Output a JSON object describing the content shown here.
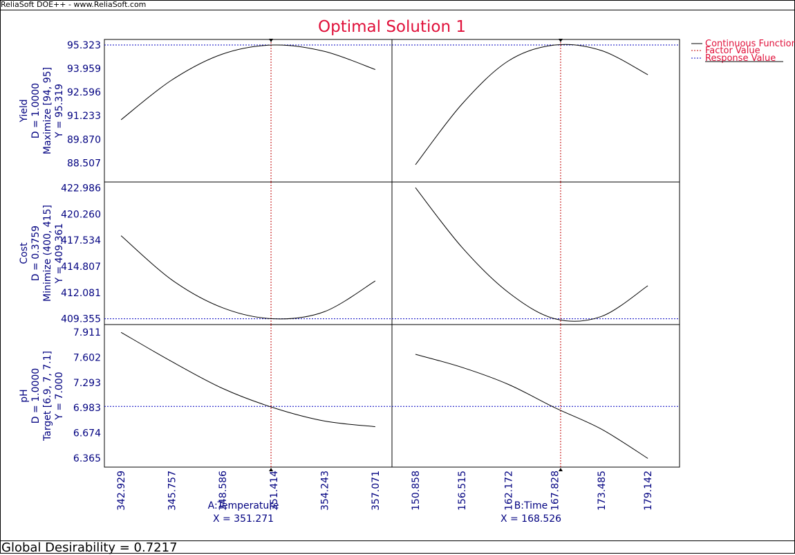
{
  "window": {
    "title": "ReliaSoft DOE++ - www.ReliaSoft.com"
  },
  "status": {
    "global_desirability": "Global Desirability = 0.7217"
  },
  "colors": {
    "title": "#e0103a",
    "axis_text": "#000080",
    "curve": "#000000",
    "factor_line": "#c00000",
    "response_line": "#0000c0",
    "legend_text": "#e0103a"
  },
  "chart_data": {
    "type": "line",
    "title": "Optimal Solution 1",
    "legend": {
      "placement": "top-right",
      "entries": [
        "Continuous Function",
        "Factor Value",
        "Response Value"
      ]
    },
    "factors": [
      {
        "name": "A:Temperature",
        "value_label": "X = 351.271",
        "value": 351.271,
        "range": [
          342.0,
          358.0
        ],
        "ticks": [
          342.929,
          345.757,
          348.586,
          351.414,
          354.243,
          357.071
        ],
        "tick_labels": [
          "342.929",
          "345.757",
          "348.586",
          "351.414",
          "354.243",
          "357.071"
        ]
      },
      {
        "name": "B:Time",
        "value_label": "X = 168.526",
        "value": 168.526,
        "range": [
          148.0,
          183.0
        ],
        "ticks": [
          150.858,
          156.515,
          162.172,
          167.828,
          173.485,
          179.142
        ],
        "tick_labels": [
          "150.858",
          "156.515",
          "162.172",
          "167.828",
          "173.485",
          "179.142"
        ]
      }
    ],
    "responses": [
      {
        "name": "Yield",
        "desirability": "D = 1.0000",
        "goal": "Maximize [94, 95]",
        "y_label": "Y = 95.319",
        "value": 95.319,
        "ylim": [
          87.4,
          95.64
        ],
        "ticks": [
          88.507,
          89.87,
          91.233,
          92.596,
          93.959,
          95.323
        ],
        "tick_labels": [
          "88.507",
          "89.870",
          "91.233",
          "92.596",
          "93.959",
          "95.323"
        ],
        "series": [
          {
            "x": [
              342.929,
              345.757,
              348.586,
              351.414,
              354.243,
              357.071
            ],
            "y": [
              91.0,
              93.3,
              94.8,
              95.319,
              94.95,
              93.9
            ]
          },
          {
            "x": [
              150.858,
              156.515,
              162.172,
              167.828,
              173.485,
              179.142
            ],
            "y": [
              88.4,
              91.9,
              94.4,
              95.319,
              95.0,
              93.6
            ]
          }
        ]
      },
      {
        "name": "Cost",
        "desirability": "D = 0.3759",
        "goal": "Minimize (400, 415]",
        "y_label": "Y = 409.361",
        "value": 409.361,
        "ylim": [
          408.76,
          423.59
        ],
        "ticks": [
          409.355,
          412.081,
          414.807,
          417.534,
          420.26,
          422.986
        ],
        "tick_labels": [
          "409.355",
          "412.081",
          "414.807",
          "417.534",
          "420.260",
          "422.986"
        ],
        "series": [
          {
            "x": [
              342.929,
              345.757,
              348.586,
              351.414,
              354.243,
              357.071
            ],
            "y": [
              418.0,
              413.4,
              410.5,
              409.361,
              410.1,
              413.3
            ]
          },
          {
            "x": [
              150.858,
              156.515,
              162.172,
              167.828,
              173.485,
              179.142
            ],
            "y": [
              423.0,
              416.8,
              412.1,
              409.361,
              409.6,
              412.8
            ]
          }
        ]
      },
      {
        "name": "pH",
        "desirability": "D = 1.0000",
        "goal": "Target [6.9, 7, 7.1]",
        "y_label": "Y = 7.000",
        "value": 7.0,
        "ylim": [
          6.253,
          8.006
        ],
        "ticks": [
          6.365,
          6.674,
          6.983,
          7.293,
          7.602,
          7.911
        ],
        "tick_labels": [
          "6.365",
          "6.674",
          "6.983",
          "7.293",
          "7.602",
          "7.911"
        ],
        "series": [
          {
            "x": [
              342.929,
              345.757,
              348.586,
              351.414,
              354.243,
              357.071
            ],
            "y": [
              7.91,
              7.55,
              7.22,
              6.983,
              6.82,
              6.75
            ]
          },
          {
            "x": [
              150.858,
              156.515,
              162.172,
              167.828,
              173.485,
              179.142
            ],
            "y": [
              7.64,
              7.48,
              7.27,
              6.983,
              6.72,
              6.36
            ]
          }
        ]
      }
    ]
  }
}
